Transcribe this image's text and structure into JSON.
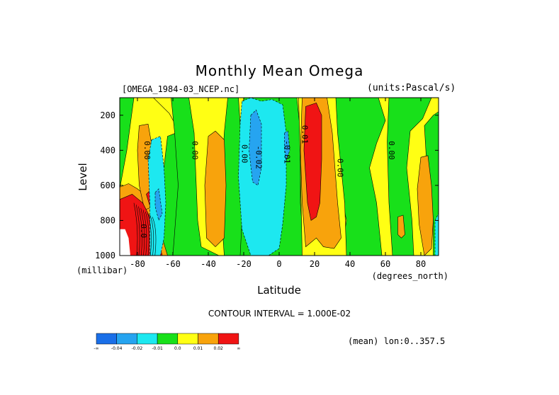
{
  "title": "Monthly Mean Omega",
  "dataset_label": "[OMEGA_1984-03_NCEP.nc]",
  "units_label": "(units:Pascal/s)",
  "contour_interval": "CONTOUR INTERVAL = 1.000E-02",
  "mean_label": "(mean) lon:0..357.5",
  "colors": {
    "blue": "#1a6fe8",
    "lightblue": "#26a4f0",
    "cyan": "#1de8f0",
    "green": "#18e01a",
    "yellow": "#ffff14",
    "orange": "#f8a30c",
    "red": "#f01414"
  },
  "chart_data": {
    "type": "heatmap",
    "title": "Monthly Mean Omega",
    "xlabel": "Latitude",
    "xunits": "(degrees_north)",
    "ylabel": "Level",
    "yunits": "(millibar)",
    "xlim": [
      -90,
      90
    ],
    "ylim": [
      1000,
      100
    ],
    "xticks": [
      -80,
      -60,
      -40,
      -20,
      0,
      20,
      40,
      60,
      80
    ],
    "xtick_labels": [
      "-80",
      "-60",
      "-40",
      "-20",
      "0",
      "20",
      "40",
      "60",
      "80"
    ],
    "yticks": [
      200,
      400,
      600,
      800,
      1000
    ],
    "ytick_labels": [
      "200",
      "400",
      "600",
      "800",
      "1000"
    ],
    "contour_labels": [
      {
        "text": "0.00",
        "lat": -76,
        "level": 400
      },
      {
        "text": "0.00",
        "lat": -49,
        "level": 400
      },
      {
        "text": "0.00",
        "lat": -21,
        "level": 420
      },
      {
        "text": "-0.02",
        "lat": -13,
        "level": 440
      },
      {
        "text": "-0.01",
        "lat": 3,
        "level": 410
      },
      {
        "text": "0.01",
        "lat": 13,
        "level": 310
      },
      {
        "text": "0.00",
        "lat": 33,
        "level": 500
      },
      {
        "text": "0.00",
        "lat": 62,
        "level": 400
      },
      {
        "text": "0.0",
        "lat": -78,
        "level": 860
      }
    ],
    "regions": [
      {
        "value": "0.0 to 0.01",
        "color": "yellow",
        "pts": [
          [
            -90,
            100
          ],
          [
            -71,
            100
          ],
          [
            -62,
            190
          ],
          [
            -56,
            300
          ],
          [
            -55,
            500
          ],
          [
            -58,
            700
          ],
          [
            -60,
            1000
          ],
          [
            -90,
            1000
          ]
        ]
      },
      {
        "value": "-0.01 to 0.0",
        "color": "green",
        "pts": [
          [
            -90,
            100
          ],
          [
            -82,
            100
          ],
          [
            -86,
            400
          ],
          [
            -90,
            620
          ]
        ]
      },
      {
        "value": "-0.01 to 0.0",
        "color": "green",
        "pts": [
          [
            -63,
            320
          ],
          [
            -58,
            300
          ],
          [
            -55,
            500
          ],
          [
            -53,
            800
          ],
          [
            -52,
            1000
          ],
          [
            -70,
            1000
          ],
          [
            -69,
            820
          ],
          [
            -66,
            580
          ]
        ]
      },
      {
        "value": "-0.01 to 0.0",
        "color": "green",
        "pts": [
          [
            -61,
            100
          ],
          [
            -51,
            100
          ],
          [
            -48,
            300
          ],
          [
            -46,
            800
          ],
          [
            -44,
            950
          ],
          [
            -34,
            1000
          ],
          [
            -60,
            1000
          ],
          [
            -57,
            600
          ],
          [
            -59,
            300
          ]
        ]
      },
      {
        "value": "-0.01 to 0.0",
        "color": "green",
        "pts": [
          [
            -29,
            100
          ],
          [
            -23,
            100
          ],
          [
            -21,
            400
          ],
          [
            -19,
            700
          ],
          [
            -19,
            1000
          ],
          [
            -31,
            1000
          ],
          [
            -33,
            700
          ],
          [
            -31,
            300
          ]
        ]
      },
      {
        "value": "-0.01 to 0.0",
        "color": "green",
        "pts": [
          [
            -20,
            100
          ],
          [
            10,
            100
          ],
          [
            12,
            300
          ],
          [
            12,
            700
          ],
          [
            14,
            1000
          ],
          [
            -22,
            1000
          ],
          [
            -21,
            800
          ],
          [
            -20,
            500
          ]
        ]
      },
      {
        "value": "-0.01 to 0.0",
        "color": "green",
        "pts": [
          [
            32,
            100
          ],
          [
            56,
            100
          ],
          [
            60,
            230
          ],
          [
            55,
            360
          ],
          [
            51,
            500
          ],
          [
            55,
            700
          ],
          [
            58,
            1000
          ],
          [
            35,
            1000
          ],
          [
            38,
            800
          ],
          [
            34,
            600
          ],
          [
            31,
            350
          ]
        ]
      },
      {
        "value": "-0.01 to 0.0",
        "color": "green",
        "pts": [
          [
            62,
            100
          ],
          [
            86,
            100
          ],
          [
            81,
            220
          ],
          [
            74,
            290
          ],
          [
            72,
            500
          ],
          [
            75,
            800
          ],
          [
            76,
            1000
          ],
          [
            64,
            1000
          ],
          [
            62,
            700
          ],
          [
            61,
            350
          ]
        ]
      },
      {
        "value": "-0.01 to 0.0",
        "color": "green",
        "pts": [
          [
            82,
            260
          ],
          [
            87,
            200
          ],
          [
            90,
            180
          ],
          [
            90,
            1000
          ],
          [
            87,
            1000
          ],
          [
            87,
            800
          ],
          [
            84,
            600
          ]
        ]
      },
      {
        "value": "0.0 to 0.01",
        "color": "yellow",
        "pts": [
          [
            11,
            100
          ],
          [
            32,
            100
          ],
          [
            33,
            300
          ],
          [
            37,
            700
          ],
          [
            38,
            1000
          ],
          [
            13,
            1000
          ],
          [
            12,
            500
          ]
        ]
      },
      {
        "value": "0.01 to 0.02",
        "color": "orange",
        "pts": [
          [
            -90,
            610
          ],
          [
            -85,
            590
          ],
          [
            -80,
            620
          ],
          [
            -74,
            670
          ],
          [
            -70,
            760
          ],
          [
            -66,
            900
          ],
          [
            -63,
            1000
          ],
          [
            -90,
            1000
          ]
        ]
      },
      {
        "value": "0.01 to 0.02",
        "color": "orange",
        "pts": [
          [
            -79,
            260
          ],
          [
            -74,
            250
          ],
          [
            -71,
            420
          ],
          [
            -70,
            620
          ],
          [
            -71,
            720
          ],
          [
            -76,
            740
          ],
          [
            -79,
            600
          ],
          [
            -80,
            400
          ]
        ]
      },
      {
        "value": "0.01 to 0.02",
        "color": "orange",
        "pts": [
          [
            -40,
            320
          ],
          [
            -36,
            290
          ],
          [
            -31,
            340
          ],
          [
            -30,
            600
          ],
          [
            -31,
            900
          ],
          [
            -36,
            950
          ],
          [
            -41,
            900
          ],
          [
            -42,
            600
          ]
        ]
      },
      {
        "value": "0.01 to 0.02",
        "color": "orange",
        "pts": [
          [
            13,
            100
          ],
          [
            27,
            100
          ],
          [
            30,
            300
          ],
          [
            33,
            700
          ],
          [
            35,
            900
          ],
          [
            31,
            960
          ],
          [
            25,
            950
          ],
          [
            21,
            900
          ],
          [
            15,
            950
          ],
          [
            13,
            700
          ],
          [
            12,
            400
          ]
        ]
      },
      {
        "value": "0.01 to 0.02",
        "color": "orange",
        "pts": [
          [
            80,
            440
          ],
          [
            84,
            430
          ],
          [
            86,
            600
          ],
          [
            87,
            800
          ],
          [
            86,
            960
          ],
          [
            82,
            1000
          ],
          [
            79,
            820
          ],
          [
            78,
            620
          ]
        ]
      },
      {
        "value": "0.01 to 0.02",
        "color": "orange",
        "pts": [
          [
            67,
            780
          ],
          [
            70,
            770
          ],
          [
            71,
            880
          ],
          [
            69,
            900
          ],
          [
            67,
            880
          ]
        ]
      },
      {
        "value": "0.02 to ∞",
        "color": "red",
        "pts": [
          [
            -90,
            680
          ],
          [
            -83,
            650
          ],
          [
            -77,
            700
          ],
          [
            -72,
            800
          ],
          [
            -68,
            920
          ],
          [
            -66,
            1000
          ],
          [
            -90,
            1000
          ]
        ]
      },
      {
        "value": "0.02 to ∞",
        "color": "red",
        "pts": [
          [
            -75,
            650
          ],
          [
            -72,
            620
          ],
          [
            -70,
            700
          ],
          [
            -72,
            750
          ]
        ]
      },
      {
        "value": "0.02 to ∞",
        "color": "red",
        "pts": [
          [
            15,
            150
          ],
          [
            21,
            130
          ],
          [
            24,
            200
          ],
          [
            24,
            450
          ],
          [
            23,
            700
          ],
          [
            21,
            780
          ],
          [
            18,
            800
          ],
          [
            16,
            700
          ],
          [
            14,
            400
          ]
        ]
      },
      {
        "value": "-0.02 to -0.01",
        "color": "cyan",
        "pts": [
          [
            -72,
            340
          ],
          [
            -67,
            320
          ],
          [
            -65,
            500
          ],
          [
            -64,
            700
          ],
          [
            -65,
            900
          ],
          [
            -67,
            1000
          ],
          [
            -73,
            1000
          ],
          [
            -73,
            700
          ],
          [
            -74,
            450
          ]
        ]
      },
      {
        "value": "-0.02 to -0.01",
        "color": "cyan",
        "pts": [
          [
            -21,
            120
          ],
          [
            -16,
            100
          ],
          [
            -10,
            120
          ],
          [
            -4,
            110
          ],
          [
            2,
            140
          ],
          [
            4,
            300
          ],
          [
            4,
            600
          ],
          [
            2,
            820
          ],
          [
            0,
            960
          ],
          [
            -6,
            1000
          ],
          [
            -16,
            1000
          ],
          [
            -21,
            850
          ],
          [
            -23,
            550
          ],
          [
            -22,
            250
          ]
        ]
      },
      {
        "value": "-0.02 to -0.01",
        "color": "cyan",
        "pts": [
          [
            88,
            800
          ],
          [
            90,
            760
          ],
          [
            90,
            1000
          ],
          [
            88,
            1000
          ]
        ]
      },
      {
        "value": "-0.04 to -0.02",
        "color": "lightblue",
        "pts": [
          [
            -16,
            200
          ],
          [
            -13,
            170
          ],
          [
            -10,
            250
          ],
          [
            -10,
            500
          ],
          [
            -12,
            600
          ],
          [
            -15,
            580
          ],
          [
            -17,
            400
          ]
        ]
      },
      {
        "value": "-0.04 to -0.02",
        "color": "lightblue",
        "pts": [
          [
            -70,
            640
          ],
          [
            -68,
            620
          ],
          [
            -66,
            760
          ],
          [
            -68,
            800
          ],
          [
            -70,
            720
          ]
        ]
      },
      {
        "value": "-0.04 to -0.02",
        "color": "lightblue",
        "pts": [
          [
            3,
            300
          ],
          [
            5,
            290
          ],
          [
            6,
            400
          ],
          [
            4,
            460
          ],
          [
            3,
            400
          ]
        ]
      }
    ],
    "white_region": {
      "pts": [
        [
          -90,
          850
        ],
        [
          -87,
          850
        ],
        [
          -85,
          900
        ],
        [
          -84,
          1000
        ],
        [
          -90,
          1000
        ]
      ]
    },
    "legend": {
      "labels": [
        "-∞",
        "-0.04",
        "-0.02",
        "-0.01",
        "0.0",
        "0.01",
        "0.02",
        "∞"
      ],
      "colors": [
        "blue",
        "lightblue",
        "cyan",
        "green",
        "yellow",
        "orange",
        "red"
      ]
    }
  }
}
